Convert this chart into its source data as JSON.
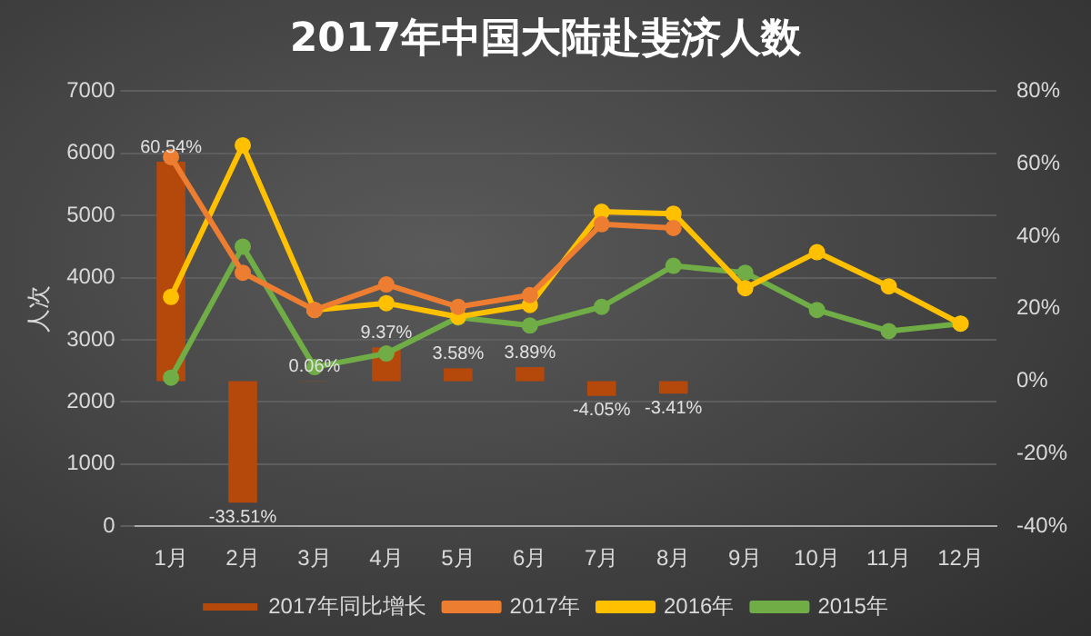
{
  "chart_data": {
    "type": "line",
    "title": "2017年中国大陆赴斐济人数",
    "categories": [
      "1月",
      "2月",
      "3月",
      "4月",
      "5月",
      "6月",
      "7月",
      "8月",
      "9月",
      "10月",
      "11月",
      "12月"
    ],
    "ylabel": "人次",
    "series": [
      {
        "name": "2017年同比增长",
        "type": "bar",
        "axis": "y2",
        "color": "#b5490c",
        "values": [
          60.54,
          -33.51,
          0.06,
          9.37,
          3.58,
          3.89,
          -4.05,
          -3.41,
          null,
          null,
          null,
          null
        ],
        "value_labels": [
          "60.54%",
          "-33.51%",
          "0.06%",
          "9.37%",
          "3.58%",
          "3.89%",
          "-4.05%",
          "-3.41%",
          null,
          null,
          null,
          null
        ]
      },
      {
        "name": "2017年",
        "color": "#ed7d31",
        "values": [
          5940,
          4080,
          3480,
          3890,
          3530,
          3720,
          4860,
          4800,
          null,
          null,
          null,
          null
        ]
      },
      {
        "name": "2016年",
        "color": "#ffc000",
        "values": [
          3690,
          6130,
          3480,
          3590,
          3370,
          3560,
          5060,
          5030,
          3830,
          4410,
          3860,
          3260
        ]
      },
      {
        "name": "2015年",
        "color": "#70ad47",
        "values": [
          2390,
          4500,
          2560,
          2780,
          3360,
          3230,
          3530,
          4190,
          4080,
          3480,
          3140,
          3260
        ]
      }
    ],
    "ylim": [
      0,
      7000
    ],
    "yticks": [
      0,
      1000,
      2000,
      3000,
      4000,
      5000,
      6000,
      7000
    ],
    "y2lim": [
      -40,
      80
    ],
    "y2ticks": [
      {
        "value": -40,
        "label": "-40%"
      },
      {
        "value": -20,
        "label": "-20%"
      },
      {
        "value": 0,
        "label": "0%"
      },
      {
        "value": 20,
        "label": "20%"
      },
      {
        "value": 40,
        "label": "40%"
      },
      {
        "value": 60,
        "label": "60%"
      },
      {
        "value": 80,
        "label": "80%"
      }
    ],
    "grid": "y",
    "legend": "bottom",
    "marker": "circle",
    "line_style": "solid"
  }
}
